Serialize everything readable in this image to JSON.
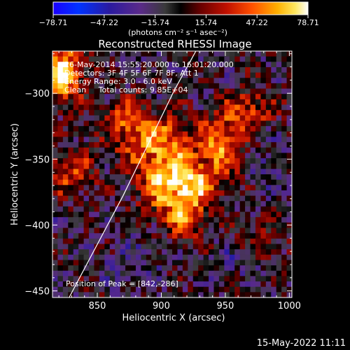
{
  "chart_data": {
    "type": "heatmap",
    "title": "Reconstructed RHESSI Image",
    "xlabel": "Heliocentric X (arcsec)",
    "ylabel": "Heliocentric Y (arcsec)",
    "xlim": [
      815,
      1002
    ],
    "ylim": [
      -455,
      -268
    ],
    "x_ticks": [
      850,
      900,
      950,
      1000
    ],
    "y_ticks": [
      -300,
      -350,
      -400,
      -450
    ],
    "x_tick_labels": [
      "850",
      "900",
      "950",
      "1000"
    ],
    "y_tick_labels": [
      "−300",
      "−350",
      "−400",
      "−450"
    ],
    "colorbar": {
      "min": -78.71,
      "max": 78.71,
      "ticks": [
        -78.71,
        -47.22,
        -15.74,
        15.74,
        47.22,
        78.71
      ],
      "tick_labels": [
        "−78.71",
        "−47.22",
        "−15.74",
        "15.74",
        "47.22",
        "78.71"
      ],
      "unit_label": "(photons cm⁻² s⁻¹ asec⁻²)",
      "colormap": "rainbow-to-hot"
    },
    "annotations": [
      "26-May-2014 15:55:20.000 to 16:01:20.000",
      "Detectors: 3F 4F 5F 6F 7F 8F, Att 1",
      "Energy Range: 3.0 - 6.0 keV",
      "Clean     Total counts: 9.85E+04"
    ],
    "peak_label": "Position of Peak = [842,-286]",
    "limb_arc": [
      [
        828,
        -455
      ],
      [
        870,
        -378
      ],
      [
        910,
        -298
      ],
      [
        927,
        -268
      ]
    ],
    "image_grid": {
      "cols": 46,
      "rows": 46,
      "blobs": [
        {
          "x": 822,
          "y": -285,
          "sx": 12,
          "sy": 14,
          "v": 85
        },
        {
          "x": 895,
          "y": -335,
          "sx": 24,
          "sy": 13,
          "v": 55
        },
        {
          "x": 903,
          "y": -368,
          "sx": 14,
          "sy": 16,
          "v": 68
        },
        {
          "x": 928,
          "y": -370,
          "sx": 12,
          "sy": 12,
          "v": 62
        },
        {
          "x": 948,
          "y": -340,
          "sx": 12,
          "sy": 16,
          "v": 52
        },
        {
          "x": 968,
          "y": -312,
          "sx": 14,
          "sy": 10,
          "v": 42
        },
        {
          "x": 918,
          "y": -397,
          "sx": 10,
          "sy": 10,
          "v": 48
        },
        {
          "x": 828,
          "y": -360,
          "sx": 14,
          "sy": 12,
          "v": 40
        },
        {
          "x": 872,
          "y": -315,
          "sx": 10,
          "sy": 10,
          "v": 36
        },
        {
          "x": 980,
          "y": -410,
          "sx": 14,
          "sy": 14,
          "v": 18
        },
        {
          "x": 960,
          "y": -425,
          "sx": 10,
          "sy": 8,
          "v": -15
        },
        {
          "x": 875,
          "y": -430,
          "sx": 16,
          "sy": 12,
          "v": -12
        },
        {
          "x": 985,
          "y": -355,
          "sx": 10,
          "sy": 14,
          "v": -10
        }
      ],
      "background": -8,
      "noise_amp": 22
    }
  },
  "footer": {
    "timestamp": "15-May-2022 11:11"
  }
}
